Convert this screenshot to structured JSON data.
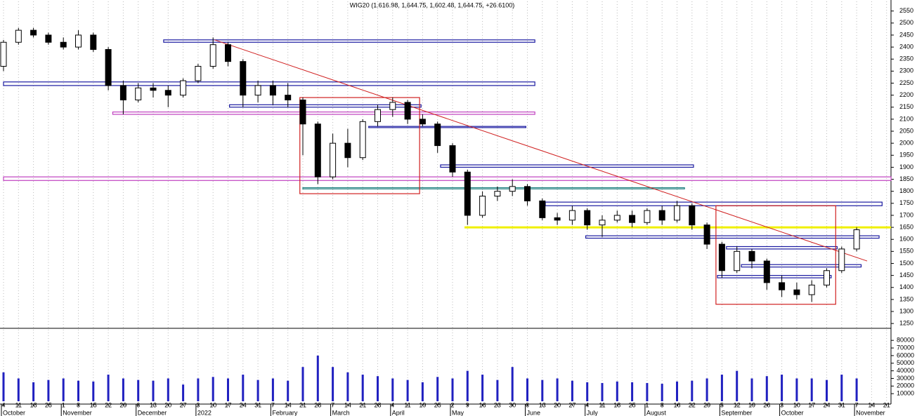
{
  "chart_data": {
    "type": "candlestick",
    "title": "WIG20 (1,616.98, 1,644.75, 1,602.48, 1,644.75, +26.6100)",
    "categories": [
      "4",
      "11",
      "18",
      "25",
      "1",
      "8",
      "15",
      "22",
      "29",
      "6",
      "13",
      "20",
      "27",
      "3",
      "10",
      "17",
      "24",
      "31",
      "7",
      "14",
      "21",
      "28",
      "7",
      "14",
      "21",
      "28",
      "4",
      "11",
      "19",
      "25",
      "2",
      "9",
      "16",
      "23",
      "30",
      "6",
      "13",
      "20",
      "27",
      "4",
      "11",
      "18",
      "25",
      "1",
      "8",
      "16",
      "22",
      "29",
      "5",
      "12",
      "19",
      "26",
      "3",
      "10",
      "17",
      "24",
      "31",
      "7",
      "14",
      "21"
    ],
    "month_labels": [
      "October",
      null,
      null,
      null,
      "November",
      null,
      null,
      null,
      null,
      "December",
      null,
      null,
      null,
      "2022",
      null,
      null,
      null,
      null,
      "February",
      null,
      null,
      null,
      "March",
      null,
      null,
      null,
      "April",
      null,
      null,
      null,
      "May",
      null,
      null,
      null,
      null,
      "June",
      null,
      null,
      null,
      "July",
      null,
      null,
      null,
      "August",
      null,
      null,
      null,
      null,
      "September",
      null,
      null,
      null,
      "October",
      null,
      null,
      null,
      null,
      "November",
      null,
      null
    ],
    "open": [
      2320,
      2420,
      2470,
      2450,
      2420,
      2400,
      2450,
      2390,
      2240,
      2180,
      2230,
      2220,
      2200,
      2260,
      2320,
      2410,
      2340,
      2200,
      2240,
      2200,
      2180,
      2080,
      1860,
      2000,
      1940,
      2090,
      2140,
      2170,
      2100,
      2080,
      1990,
      1880,
      1700,
      1780,
      1800,
      1820,
      1760,
      1690,
      1680,
      1720,
      1660,
      1680,
      1700,
      1670,
      1720,
      1680,
      1740,
      1660,
      1580,
      1470,
      1550,
      1510,
      1420,
      1390,
      1370,
      1410,
      1470,
      1560,
      null,
      null
    ],
    "high": [
      2430,
      2480,
      2480,
      2460,
      2440,
      2470,
      2460,
      2400,
      2260,
      2250,
      2250,
      2240,
      2270,
      2330,
      2440,
      2420,
      2350,
      2260,
      2260,
      2250,
      2190,
      2090,
      2040,
      2060,
      2100,
      2160,
      2190,
      2180,
      2120,
      2090,
      2000,
      1890,
      1800,
      1820,
      1850,
      1830,
      1770,
      1710,
      1740,
      1730,
      1700,
      1720,
      1720,
      1730,
      1740,
      1760,
      1750,
      1670,
      1590,
      1570,
      1560,
      1520,
      1450,
      1420,
      1430,
      1480,
      1570,
      1650,
      null,
      null
    ],
    "low": [
      2300,
      2410,
      2440,
      2410,
      2390,
      2390,
      2380,
      2220,
      2120,
      2170,
      2190,
      2150,
      2190,
      2250,
      2310,
      2320,
      2150,
      2170,
      2160,
      2150,
      1950,
      1830,
      1850,
      1900,
      1930,
      2070,
      2110,
      2080,
      2070,
      1960,
      1860,
      1660,
      1690,
      1760,
      1780,
      1740,
      1680,
      1660,
      1660,
      1640,
      1610,
      1670,
      1650,
      1660,
      1660,
      1670,
      1640,
      1560,
      1440,
      1460,
      1480,
      1390,
      1360,
      1350,
      1340,
      1400,
      1460,
      1550,
      null,
      null
    ],
    "close": [
      2420,
      2470,
      2450,
      2420,
      2400,
      2450,
      2390,
      2240,
      2180,
      2230,
      2220,
      2200,
      2260,
      2320,
      2410,
      2340,
      2200,
      2240,
      2200,
      2180,
      2080,
      1860,
      2000,
      1940,
      2090,
      2140,
      2170,
      2100,
      2080,
      1990,
      1880,
      1700,
      1780,
      1800,
      1820,
      1760,
      1690,
      1680,
      1720,
      1660,
      1680,
      1700,
      1670,
      1720,
      1680,
      1740,
      1660,
      1580,
      1470,
      1550,
      1510,
      1420,
      1390,
      1370,
      1410,
      1470,
      1560,
      1640,
      null,
      null
    ],
    "ylim": [
      1230,
      2590
    ],
    "yticks": [
      1250,
      1300,
      1350,
      1400,
      1450,
      1500,
      1550,
      1600,
      1650,
      1700,
      1750,
      1800,
      1850,
      1900,
      1950,
      2000,
      2050,
      2100,
      2150,
      2200,
      2250,
      2300,
      2350,
      2400,
      2450,
      2500,
      2550
    ],
    "grid": true,
    "levels": [
      {
        "low": 2420,
        "high": 2430,
        "start": 10.7,
        "end": 35.5,
        "color": "#1a1aa0"
      },
      {
        "low": 2240,
        "high": 2255,
        "start": 0,
        "end": 35.5,
        "color": "#1a1aa0"
      },
      {
        "low": 2150,
        "high": 2160,
        "start": 15.1,
        "end": 27.9,
        "color": "#1a1aa0"
      },
      {
        "low": 2120,
        "high": 2130,
        "start": 7.3,
        "end": 35.5,
        "color": "#c040c0"
      },
      {
        "low": 2065,
        "high": 2070,
        "start": 24.4,
        "end": 34.9,
        "color": "#1a1aa0"
      },
      {
        "low": 1845,
        "high": 1860,
        "start": 0,
        "end": 59.3,
        "color": "#c040c0"
      },
      {
        "low": 1900,
        "high": 1910,
        "start": 29.2,
        "end": 46.1,
        "color": "#1a1aa0"
      },
      {
        "low": 1810,
        "high": 1815,
        "start": 20,
        "end": 45.5,
        "color": "#208080"
      },
      {
        "low": 1740,
        "high": 1755,
        "start": 36.2,
        "end": 58.7,
        "color": "#1a1aa0"
      },
      {
        "low": 1650,
        "high": 1650,
        "start": 30.8,
        "end": 59.3,
        "color": "#f0f000"
      },
      {
        "low": 1605,
        "high": 1615,
        "start": 38.9,
        "end": 58.5,
        "color": "#1a1aa0"
      },
      {
        "low": 1560,
        "high": 1570,
        "start": 48.3,
        "end": 55.7,
        "color": "#1a1aa0"
      },
      {
        "low": 1485,
        "high": 1495,
        "start": 49.3,
        "end": 57.3,
        "color": "#1a1aa0"
      },
      {
        "low": 1440,
        "high": 1450,
        "start": 47.7,
        "end": 55.3,
        "color": "#1a1aa0"
      },
      {
        "low": 1790,
        "high": 2190,
        "start": 19.8,
        "end": 27.8,
        "color": "#d02020"
      },
      {
        "low": 1330,
        "high": 1740,
        "start": 47.6,
        "end": 55.6,
        "color": "#d02020"
      }
    ],
    "trendline": {
      "x": [
        14.1,
        57.7
      ],
      "y": [
        2430,
        1510
      ],
      "color": "#d02020"
    },
    "volume": {
      "values": [
        38000,
        30000,
        25000,
        28000,
        30000,
        27000,
        26000,
        35000,
        30000,
        28000,
        27000,
        30000,
        22000,
        30000,
        32000,
        30000,
        35000,
        28000,
        30000,
        27000,
        45000,
        60000,
        45000,
        38000,
        35000,
        33000,
        30000,
        28000,
        25000,
        32000,
        30000,
        40000,
        35000,
        28000,
        45000,
        30000,
        28000,
        30000,
        27000,
        25000,
        24000,
        26000,
        25000,
        24000,
        23000,
        26000,
        27000,
        30000,
        35000,
        40000,
        30000,
        33000,
        35000,
        30000,
        30000,
        28000,
        35000,
        30000,
        null,
        null
      ],
      "color": "#2020c0",
      "ylim": [
        0,
        94000
      ],
      "yticks": [
        10000,
        20000,
        30000,
        40000,
        50000,
        60000,
        70000,
        80000
      ]
    }
  }
}
